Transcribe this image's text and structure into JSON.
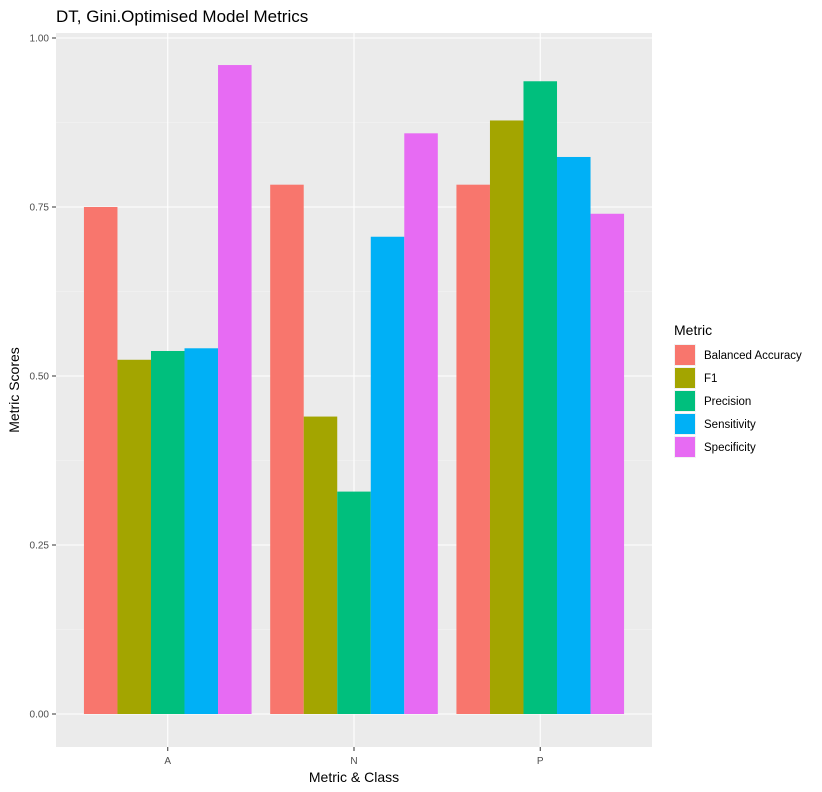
{
  "chart_data": {
    "type": "bar",
    "title": "DT, Gini.Optimised Model Metrics",
    "xlabel": "Metric & Class",
    "ylabel": "Metric Scores",
    "categories": [
      "A",
      "N",
      "P"
    ],
    "ylim": [
      0,
      1
    ],
    "yticks": [
      "0.00",
      "0.25",
      "0.50",
      "0.75",
      "1.00"
    ],
    "yticks_values": [
      0,
      0.25,
      0.5,
      0.75,
      1.0
    ],
    "grid": true,
    "legend_title": "Metric",
    "legend_position": "right",
    "series": [
      {
        "name": "Balanced Accuracy",
        "color": "#F8766D",
        "values": [
          0.75,
          0.783,
          0.783
        ]
      },
      {
        "name": "F1",
        "color": "#A3A500",
        "values": [
          0.524,
          0.44,
          0.878
        ]
      },
      {
        "name": "Precision",
        "color": "#00BF7D",
        "values": [
          0.537,
          0.329,
          0.936
        ]
      },
      {
        "name": "Sensitivity",
        "color": "#00B0F6",
        "values": [
          0.541,
          0.706,
          0.824
        ]
      },
      {
        "name": "Specificity",
        "color": "#E76BF3",
        "values": [
          0.96,
          0.859,
          0.74
        ]
      }
    ]
  }
}
